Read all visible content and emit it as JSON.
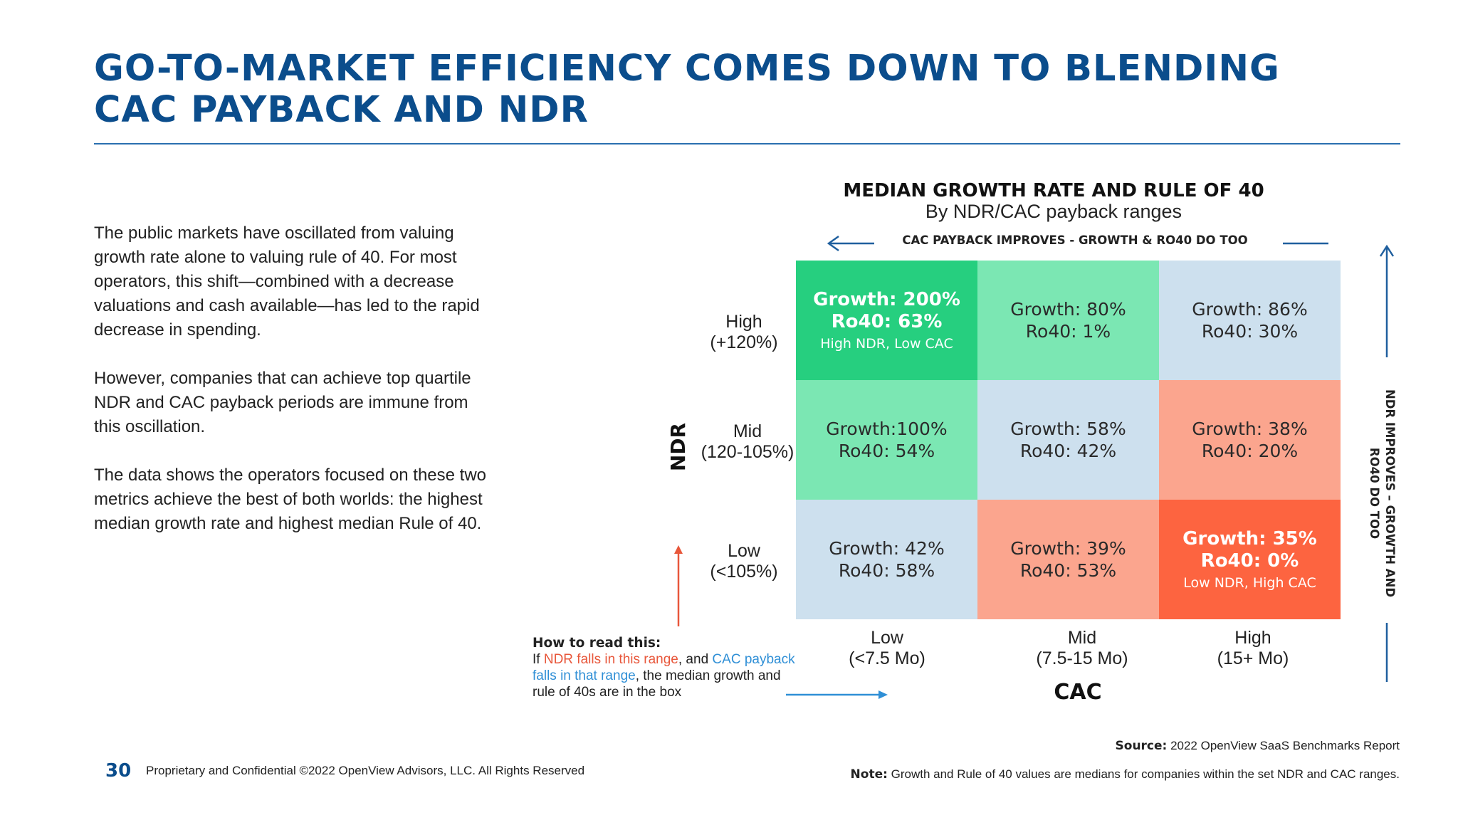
{
  "title": {
    "line1": "GO-TO-MARKET EFFICIENCY COMES DOWN TO BLENDING",
    "line2": "CAC PAYBACK AND NDR"
  },
  "body": {
    "p1": "The public markets have oscillated from valuing growth rate alone to valuing rule of 40. For most operators, this shift—combined with a decrease valuations and cash available—has led to the rapid decrease in spending.",
    "p2": "However, companies that can achieve top quartile NDR and CAC payback periods are immune from this oscillation.",
    "p3": "The data shows the operators focused on these two metrics achieve the best of both worlds: the highest median growth rate and highest median Rule of 40."
  },
  "chart_data": {
    "type": "table",
    "title": "MEDIAN GROWTH RATE AND RULE OF 40",
    "subtitle": "By NDR/CAC payback ranges",
    "x_axis_label": "CAC",
    "y_axis_label": "NDR",
    "x_note": "CAC PAYBACK IMPROVES - GROWTH & RO40 DO TOO",
    "y_note": "NDR IMPROVES – GROWTH AND RO40 DO TOO",
    "rows": [
      {
        "line1": "High",
        "line2": "(+120%)"
      },
      {
        "line1": "Mid",
        "line2": "(120-105%)"
      },
      {
        "line1": "Low",
        "line2": "(<105%)"
      }
    ],
    "columns": [
      {
        "line1": "Low",
        "line2": "(<7.5 Mo)"
      },
      {
        "line1": "Mid",
        "line2": "(7.5-15 Mo)"
      },
      {
        "line1": "High",
        "line2": "(15+ Mo)"
      }
    ],
    "cells": [
      [
        {
          "growth": "Growth: 200%",
          "ro40": "Ro40: 63%",
          "note": "High NDR, Low CAC",
          "color": "#26cf7f",
          "highlight": true
        },
        {
          "growth": "Growth: 80%",
          "ro40": "Ro40: 1%",
          "note": "",
          "color": "#7be7b3",
          "highlight": false
        },
        {
          "growth": "Growth: 86%",
          "ro40": "Ro40: 30%",
          "note": "",
          "color": "#cde0ee",
          "highlight": false
        }
      ],
      [
        {
          "growth": "Growth:100%",
          "ro40": "Ro40: 54%",
          "note": "",
          "color": "#7be7b3",
          "highlight": false
        },
        {
          "growth": "Growth: 58%",
          "ro40": "Ro40: 42%",
          "note": "",
          "color": "#cde0ee",
          "highlight": false
        },
        {
          "growth": "Growth: 38%",
          "ro40": "Ro40: 20%",
          "note": "",
          "color": "#fba58e",
          "highlight": false
        }
      ],
      [
        {
          "growth": "Growth: 42%",
          "ro40": "Ro40: 58%",
          "note": "",
          "color": "#cde0ee",
          "highlight": false
        },
        {
          "growth": "Growth: 39%",
          "ro40": "Ro40: 53%",
          "note": "",
          "color": "#fba58e",
          "highlight": false
        },
        {
          "growth": "Growth: 35%",
          "ro40": "Ro40: 0%",
          "note": "Low NDR, High CAC",
          "color": "#fd6440",
          "highlight": true
        }
      ]
    ]
  },
  "howto": {
    "title": "How to read this:",
    "t1": "If ",
    "t2": "NDR falls in this range",
    "t3": ", and ",
    "t4": "CAC payback falls in that range",
    "t5": ", the median growth and rule of 40s are in the box"
  },
  "footer": {
    "page_number": "30",
    "confidential": "Proprietary and Confidential ©2022 OpenView Advisors, LLC. All Rights Reserved",
    "source_label": "Source:",
    "source_text": " 2022 OpenView SaaS Benchmarks Report",
    "note_label": "Note:",
    "note_text": " Growth and Rule of 40 values are medians for companies within the set NDR and CAC ranges."
  },
  "colors": {
    "title_blue": "#0b4d8c",
    "arrow_blue": "#1f5f9e",
    "accent_red": "#e8573b",
    "accent_blue": "#2f8fd6"
  }
}
